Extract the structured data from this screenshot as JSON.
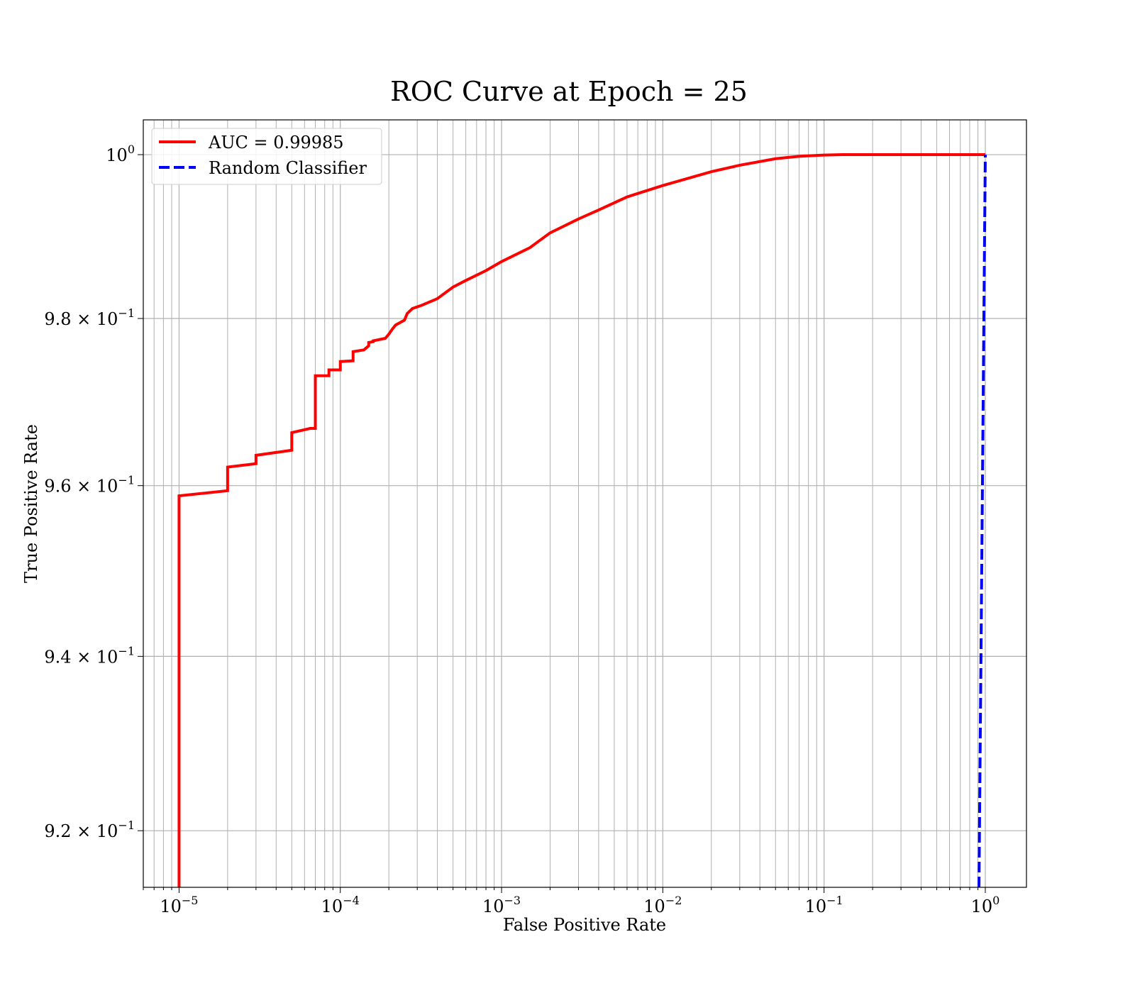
{
  "chart_data": {
    "type": "line",
    "title": "ROC Curve at Epoch = 25",
    "xlabel": "False Positive Rate",
    "ylabel": "True Positive Rate",
    "xscale": "log",
    "yscale": "log",
    "xlim": [
      6e-06,
      1.8
    ],
    "ylim": [
      0.9136,
      1.0043
    ],
    "grid": true,
    "grid_minor": true,
    "legend_position": "top-left",
    "x_ticks": [
      {
        "base": "10",
        "exp": "−5"
      },
      {
        "base": "10",
        "exp": "−4"
      },
      {
        "base": "10",
        "exp": "−3"
      },
      {
        "base": "10",
        "exp": "−2"
      },
      {
        "base": "10",
        "exp": "−1"
      },
      {
        "base": "10",
        "exp": "0"
      }
    ],
    "y_ticks": [
      {
        "mantissa": "9.2 × ",
        "base": "10",
        "exp": "−1"
      },
      {
        "mantissa": "9.4 × ",
        "base": "10",
        "exp": "−1"
      },
      {
        "mantissa": "9.6 × ",
        "base": "10",
        "exp": "−1"
      },
      {
        "mantissa": "9.8 × ",
        "base": "10",
        "exp": "−1"
      },
      {
        "mantissa": "",
        "base": "10",
        "exp": "0"
      }
    ],
    "series": [
      {
        "name": "AUC = 0.99985",
        "color": "#ff0000",
        "style": "solid",
        "x": [
          1e-05,
          1e-05,
          2e-05,
          2e-05,
          3e-05,
          3e-05,
          5e-05,
          5e-05,
          6.5e-05,
          7e-05,
          7e-05,
          8.5e-05,
          8.5e-05,
          0.0001,
          0.0001,
          0.00012,
          0.00012,
          0.00014,
          0.00015,
          0.00015,
          0.00016,
          0.00016,
          0.00019,
          0.0002,
          0.00021,
          0.00022,
          0.00025,
          0.00026,
          0.00028,
          0.00032,
          0.0004,
          0.0005,
          0.0006,
          0.0008,
          0.001,
          0.0015,
          0.002,
          0.003,
          0.004,
          0.006,
          0.01,
          0.02,
          0.03,
          0.05,
          0.07,
          0.1,
          0.13,
          1
        ],
        "y": [
          0.912,
          0.9588,
          0.9594,
          0.9622,
          0.9626,
          0.9636,
          0.9642,
          0.9663,
          0.9668,
          0.9668,
          0.9731,
          0.9731,
          0.9738,
          0.9738,
          0.9748,
          0.9749,
          0.976,
          0.9762,
          0.9767,
          0.9771,
          0.9772,
          0.9773,
          0.9776,
          0.9781,
          0.9787,
          0.9792,
          0.9798,
          0.9806,
          0.9812,
          0.9816,
          0.9824,
          0.9838,
          0.9846,
          0.9858,
          0.9869,
          0.9886,
          0.9904,
          0.9921,
          0.9932,
          0.9948,
          0.9962,
          0.9979,
          0.9987,
          0.9995,
          0.9998,
          0.99995,
          1.0,
          1.0
        ]
      },
      {
        "name": "Random Classifier",
        "color": "#0000ff",
        "style": "dashed",
        "x": [
          0.9136,
          1.0
        ],
        "y": [
          0.9136,
          1.0
        ]
      }
    ]
  }
}
